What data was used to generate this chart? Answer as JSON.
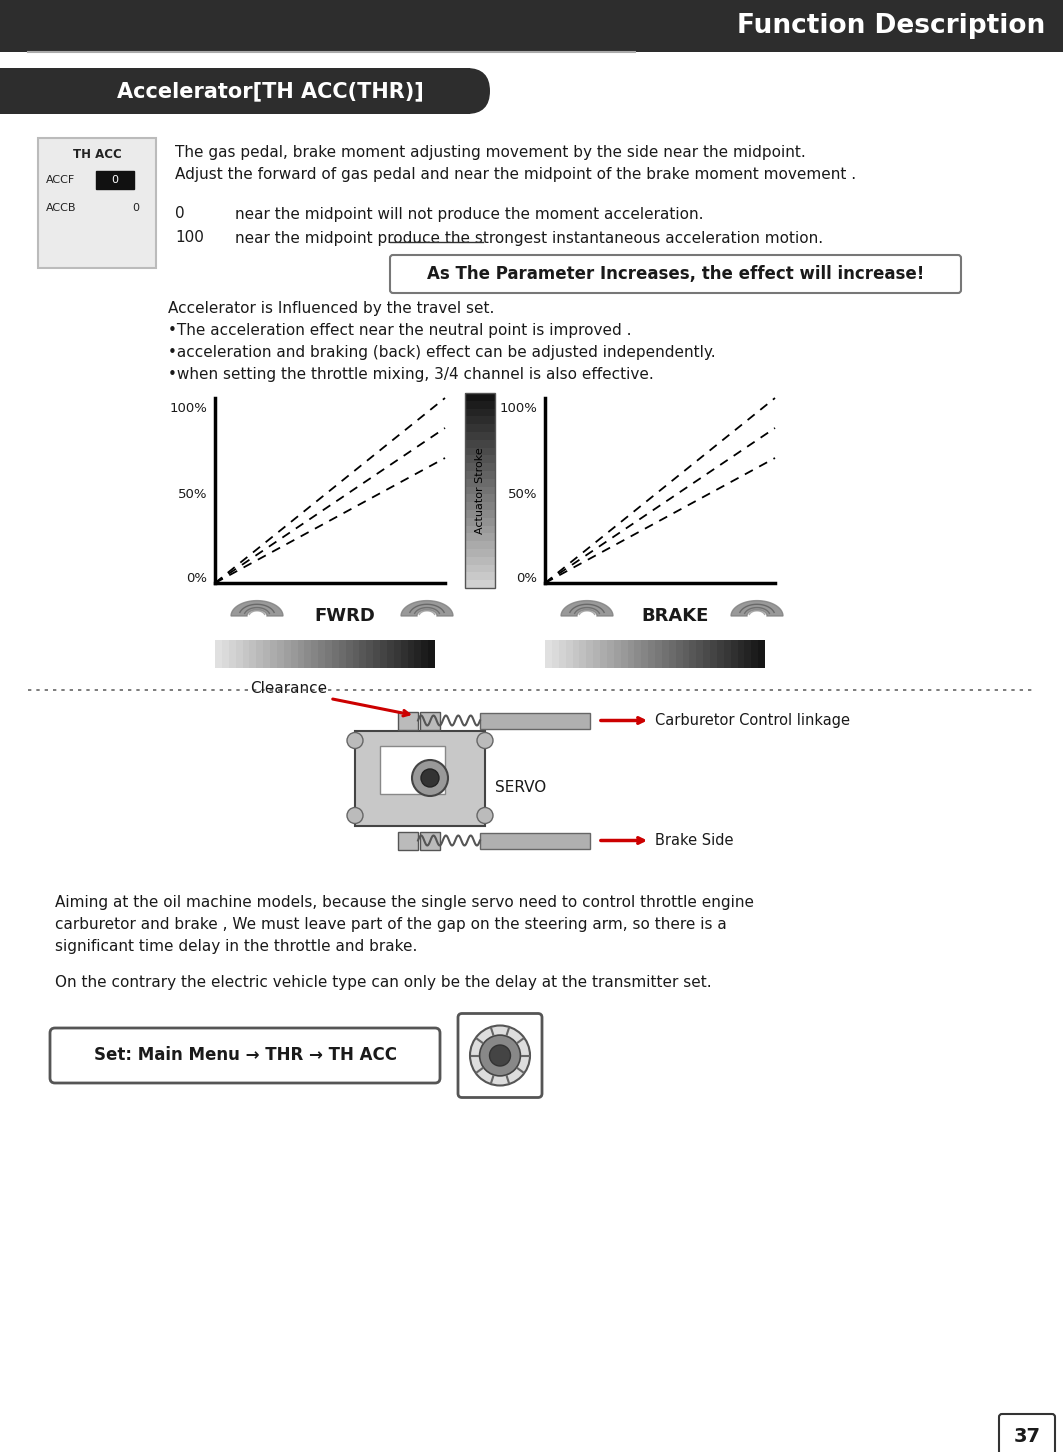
{
  "page_title": "Function Description",
  "section_title": "Accelerator[TH ACC(THR)]",
  "intro_text": [
    "The gas pedal, brake moment adjusting movement by the side near the midpoint.",
    "Adjust the forward of gas pedal and near the midpoint of the brake moment movement ."
  ],
  "param_0": "0",
  "param_0_text": "near the midpoint will not produce the moment acceleration.",
  "param_100": "100",
  "param_100_text": "near the midpoint produce the strongest instantaneous acceleration motion.",
  "highlight_box": "As The Parameter Increases, the effect will increase!",
  "body_text": [
    "Accelerator is Influenced by the travel set.",
    "•The acceleration effect near the neutral point is improved .",
    "•acceleration and braking (back) effect can be adjusted independently.",
    "•when setting the throttle mixing, 3/4 channel is also effective."
  ],
  "chart_xlabel_left": "FWRD",
  "chart_xlabel_right": "BRAKE",
  "actuator_label": "Actuator Stroke",
  "clearance_label": "Clearance",
  "carburetor_label": "Carburetor Control linkage",
  "servo_label": "SERVO",
  "brake_label": "Brake Side",
  "bottom_text_1": "Aiming at the oil machine models, because the single servo need to control throttle engine",
  "bottom_text_2": "carburetor and brake , We must leave part of the gap on the steering arm, so there is a",
  "bottom_text_3": "significant time delay in the throttle and brake.",
  "bottom_text_4": "On the contrary the electric vehicle type can only be the delay at the transmitter set.",
  "set_menu_text": "Set: Main Menu → THR → TH ACC",
  "page_number": "37",
  "bg_color": "#ffffff",
  "header_bg": "#2d2d2d",
  "section_bg": "#2d2d2d",
  "red_color": "#cc0000",
  "body_text_color": "#1a1a1a"
}
